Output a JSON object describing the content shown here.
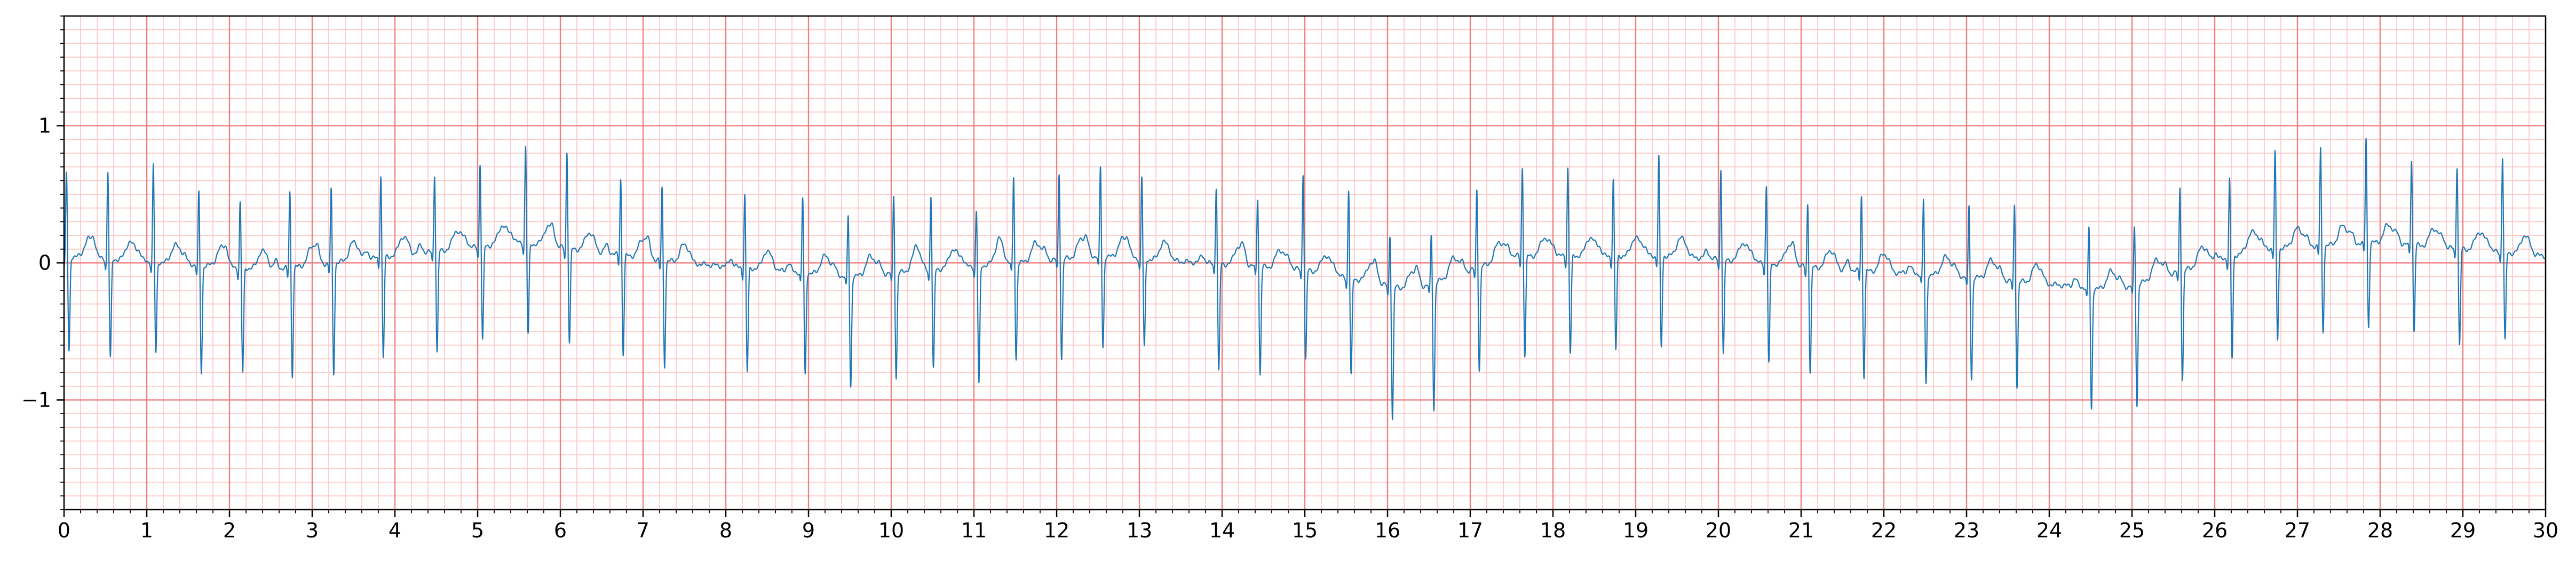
{
  "chart_data": {
    "type": "line",
    "title": "",
    "xlabel": "",
    "ylabel": "",
    "xlim": [
      0,
      30
    ],
    "ylim": [
      -1.8,
      1.8
    ],
    "grid": {
      "major": true,
      "minor": true
    },
    "colors": {
      "line": "#1f77b4",
      "major_grid": "#f08080",
      "minor_grid": "#ffc8c8",
      "axis": "#000000",
      "background": "#ffffff"
    },
    "x_ticks": [
      0,
      1,
      2,
      3,
      4,
      5,
      6,
      7,
      8,
      9,
      10,
      11,
      12,
      13,
      14,
      15,
      16,
      17,
      18,
      19,
      20,
      21,
      22,
      23,
      24,
      25,
      26,
      27,
      28,
      29,
      30
    ],
    "x_tick_labels": [
      "0",
      "1",
      "2",
      "3",
      "4",
      "5",
      "6",
      "7",
      "8",
      "9",
      "10",
      "11",
      "12",
      "13",
      "14",
      "15",
      "16",
      "17",
      "18",
      "19",
      "20",
      "21",
      "22",
      "23",
      "24",
      "25",
      "26",
      "27",
      "28",
      "29",
      "30"
    ],
    "y_ticks": [
      -1,
      0,
      1
    ],
    "y_tick_labels": [
      "−1",
      "0",
      "1"
    ],
    "series": [
      {
        "r_peak_times": [
          0.03,
          0.53,
          1.08,
          1.63,
          2.13,
          2.73,
          3.23,
          3.83,
          4.48,
          5.03,
          5.58,
          6.08,
          6.73,
          7.23,
          8.23,
          8.93,
          9.48,
          10.03,
          10.48,
          11.03,
          11.48,
          12.03,
          12.53,
          13.03,
          13.93,
          14.43,
          14.98,
          15.53,
          16.03,
          16.53,
          17.08,
          17.63,
          18.18,
          18.73,
          19.28,
          20.03,
          20.58,
          21.08,
          21.73,
          22.48,
          23.03,
          23.58,
          24.48,
          25.03,
          25.58,
          26.18,
          26.73,
          27.28,
          27.83,
          28.38,
          28.93,
          29.48
        ],
        "r_peak_amplitudes": [
          0.62,
          0.65,
          0.72,
          0.54,
          0.49,
          0.57,
          0.55,
          0.62,
          0.58,
          0.62,
          0.72,
          0.72,
          0.57,
          0.54,
          0.55,
          0.56,
          0.46,
          0.58,
          0.56,
          0.42,
          0.64,
          0.64,
          0.66,
          0.61,
          0.58,
          0.52,
          0.72,
          0.66,
          0.39,
          0.37,
          0.59,
          0.66,
          0.66,
          0.57,
          0.74,
          0.68,
          0.58,
          0.48,
          0.56,
          0.56,
          0.53,
          0.57,
          0.46,
          0.44,
          0.63,
          0.58,
          0.71,
          0.72,
          0.78,
          0.64,
          0.62,
          0.71
        ],
        "s_wave_amplitudes": [
          -0.65,
          -0.68,
          -0.62,
          -0.74,
          -0.72,
          -0.74,
          -0.76,
          -0.69,
          -0.69,
          -0.64,
          -0.62,
          -0.64,
          -0.67,
          -0.72,
          -0.71,
          -0.7,
          -0.76,
          -0.72,
          -0.68,
          -0.82,
          -0.66,
          -0.68,
          -0.62,
          -0.6,
          -0.74,
          -0.74,
          -0.61,
          -0.66,
          -0.92,
          -0.88,
          -0.7,
          -0.68,
          -0.66,
          -0.64,
          -0.62,
          -0.64,
          -0.68,
          -0.72,
          -0.72,
          -0.76,
          -0.7,
          -0.72,
          -0.84,
          -0.84,
          -0.74,
          -0.7,
          -0.62,
          -0.58,
          -0.56,
          -0.58,
          -0.66,
          -0.6
        ],
        "baseline_segments": [
          [
            0,
            0.05
          ],
          [
            2.5,
            -0.05
          ],
          [
            5.5,
            0.15
          ],
          [
            7.5,
            0.0
          ],
          [
            9.5,
            -0.1
          ],
          [
            12.5,
            0.05
          ],
          [
            15.0,
            -0.05
          ],
          [
            16.3,
            -0.2
          ],
          [
            17.5,
            0.05
          ],
          [
            19.5,
            0.05
          ],
          [
            21.5,
            -0.05
          ],
          [
            23.0,
            -0.1
          ],
          [
            24.8,
            -0.2
          ],
          [
            26.5,
            0.1
          ],
          [
            28.0,
            0.15
          ],
          [
            30,
            0.05
          ]
        ]
      }
    ]
  }
}
